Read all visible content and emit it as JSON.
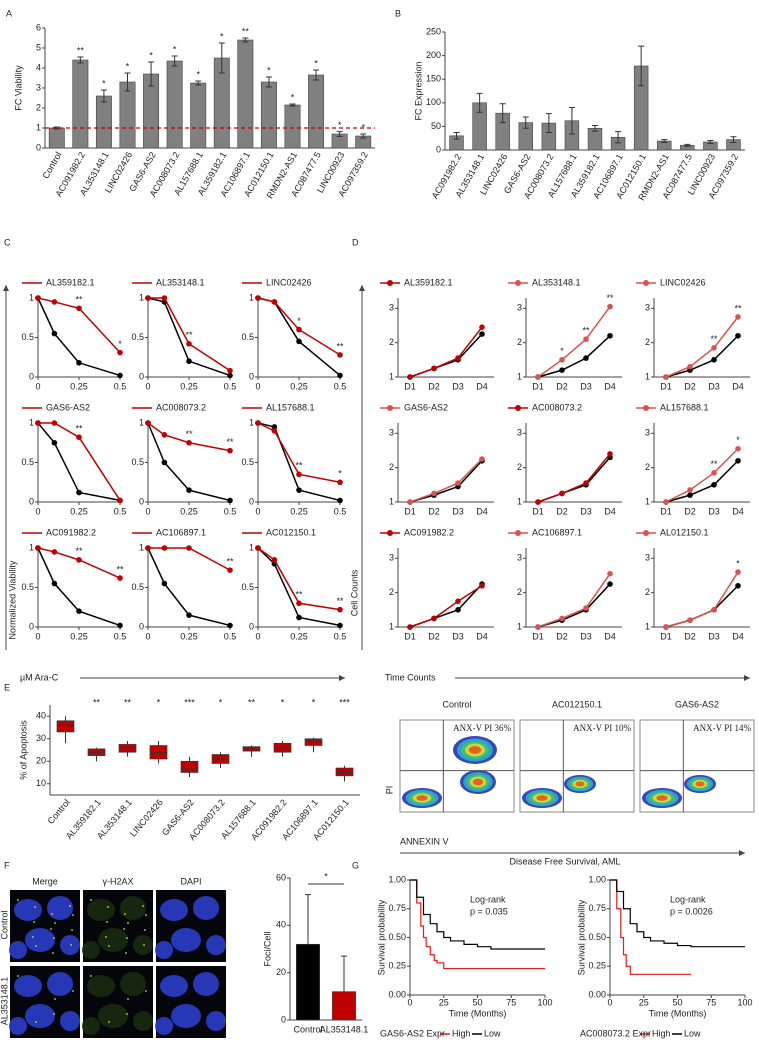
{
  "panel_letters": [
    "A",
    "B",
    "C",
    "D",
    "E",
    "F",
    "G"
  ],
  "chart_data": [
    {
      "type": "bar",
      "ylabel": "FC Viability",
      "categories": [
        "Control",
        "AC091982.2",
        "AL353148.1",
        "LINC02426",
        "GAS6-AS2",
        "AC008073.2",
        "AL157688.1",
        "AL359182.1",
        "AC106897.1",
        "AC012150.1",
        "RMDN2-AS1",
        "AC087477.5",
        "LINC00923",
        "AC097359.2"
      ],
      "values": [
        1,
        4.4,
        2.6,
        3.3,
        3.7,
        4.35,
        3.25,
        4.5,
        5.4,
        3.3,
        2.15,
        3.65,
        0.7,
        0.6
      ],
      "errors": [
        0.05,
        0.15,
        0.3,
        0.45,
        0.6,
        0.25,
        0.1,
        0.75,
        0.1,
        0.25,
        0.05,
        0.25,
        0.12,
        0.1
      ],
      "annotations": [
        null,
        "**",
        "*",
        "*",
        "*",
        "*",
        "*",
        "*",
        "**",
        "*",
        "*",
        "*",
        "*",
        "*"
      ],
      "color": "#808080",
      "ref_line": 1,
      "ref_color": "#c00000",
      "ylim": [
        0,
        6
      ],
      "yticks": [
        0,
        1,
        2,
        3,
        4,
        5,
        6
      ]
    },
    {
      "type": "bar",
      "ylabel": "FC Expression",
      "categories": [
        "AC091982.2",
        "AL353148.1",
        "LINC02426",
        "GAS6-AS2",
        "AC008073.2",
        "AL157688.1",
        "AL359182.1",
        "AC106897.1",
        "AC012150.1",
        "RMDN2-AS1",
        "AC087477.5",
        "LINC00923",
        "AC097359.2"
      ],
      "values": [
        30,
        100,
        78,
        58,
        57,
        62,
        46,
        27,
        178,
        19,
        10,
        17,
        22
      ],
      "errors": [
        7,
        20,
        20,
        12,
        20,
        28,
        6,
        12,
        42,
        3,
        2,
        3,
        6
      ],
      "color": "#808080",
      "ylim": [
        0,
        250
      ],
      "yticks": [
        0,
        50,
        100,
        150,
        200,
        250
      ]
    },
    {
      "type": "line",
      "ylabel": "Normalized Viability",
      "xlabel": "µM Ara-C",
      "x": [
        0,
        0.1,
        0.25,
        0.5
      ],
      "xlim": [
        0,
        0.5
      ],
      "xticks": [
        0,
        0.25,
        0.5
      ],
      "ylim": [
        0,
        1
      ],
      "yticks": [
        0,
        0.5,
        1
      ],
      "panels": [
        {
          "series": [
            {
              "color": "#000000",
              "values": [
                1,
                0.55,
                0.18,
                0.02
              ]
            },
            {
              "name": "AL359182.1",
              "color": "#c00000",
              "values": [
                1,
                0.95,
                0.87,
                0.31
              ],
              "annotations": [
                null,
                null,
                "**",
                "*"
              ]
            }
          ]
        },
        {
          "series": [
            {
              "color": "#000000",
              "values": [
                1,
                0.95,
                0.2,
                0.02
              ]
            },
            {
              "name": "AL353148.1",
              "color": "#c00000",
              "values": [
                1,
                1,
                0.42,
                0.08
              ],
              "annotations": [
                null,
                null,
                "**",
                null
              ]
            }
          ]
        },
        {
          "series": [
            {
              "color": "#000000",
              "values": [
                1,
                0.95,
                0.45,
                0.02
              ]
            },
            {
              "name": "LINC02426",
              "color": "#c00000",
              "values": [
                1,
                0.95,
                0.6,
                0.28
              ],
              "annotations": [
                null,
                null,
                "*",
                "**"
              ]
            }
          ]
        },
        {
          "series": [
            {
              "color": "#000000",
              "values": [
                1,
                0.75,
                0.12,
                0.02
              ]
            },
            {
              "name": "GAS6-AS2",
              "color": "#c00000",
              "values": [
                1,
                1,
                0.82,
                0.02
              ],
              "annotations": [
                null,
                null,
                "**",
                null
              ]
            }
          ]
        },
        {
          "series": [
            {
              "color": "#000000",
              "values": [
                1,
                0.5,
                0.15,
                0.02
              ]
            },
            {
              "name": "AC008073.2",
              "color": "#c00000",
              "values": [
                1,
                0.85,
                0.75,
                0.65
              ],
              "annotations": [
                null,
                null,
                "**",
                "**"
              ]
            }
          ]
        },
        {
          "series": [
            {
              "color": "#000000",
              "values": [
                1,
                0.95,
                0.15,
                0.02
              ]
            },
            {
              "name": "AL157688.1",
              "color": "#c00000",
              "values": [
                1,
                0.9,
                0.35,
                0.25
              ],
              "annotations": [
                null,
                null,
                "**",
                "*"
              ]
            }
          ]
        },
        {
          "series": [
            {
              "color": "#000000",
              "values": [
                1,
                0.55,
                0.2,
                0.02
              ]
            },
            {
              "name": "AC091982.2",
              "color": "#c00000",
              "values": [
                1,
                0.95,
                0.85,
                0.62
              ],
              "annotations": [
                null,
                null,
                "**",
                "**"
              ]
            }
          ]
        },
        {
          "series": [
            {
              "color": "#000000",
              "values": [
                1,
                0.55,
                0.15,
                0.02
              ]
            },
            {
              "name": "AC106897.1",
              "color": "#c00000",
              "values": [
                1,
                1,
                1,
                0.72
              ],
              "annotations": [
                null,
                null,
                null,
                "**"
              ]
            }
          ]
        },
        {
          "series": [
            {
              "color": "#000000",
              "values": [
                1,
                0.8,
                0.12,
                0.02
              ]
            },
            {
              "name": "AC012150.1",
              "color": "#c00000",
              "values": [
                1,
                0.85,
                0.3,
                0.22
              ],
              "annotations": [
                null,
                null,
                "**",
                "**"
              ]
            }
          ]
        }
      ]
    },
    {
      "type": "line",
      "ylabel": "Cell Counts",
      "xlabel": "Time Counts",
      "categories": [
        "D1",
        "D2",
        "D3",
        "D4"
      ],
      "ylim": [
        1,
        3.3
      ],
      "yticks": [
        1,
        2,
        3
      ],
      "panels": [
        {
          "series": [
            {
              "color": "#000000",
              "values": [
                1,
                1.25,
                1.5,
                2.25
              ]
            },
            {
              "name": "AL359182.1",
              "color": "#c00000",
              "values": [
                1,
                1.25,
                1.55,
                2.45
              ]
            }
          ]
        },
        {
          "series": [
            {
              "color": "#000000",
              "values": [
                1,
                1.2,
                1.55,
                2.2
              ]
            },
            {
              "name": "AL353148.1",
              "color": "#d9534f",
              "values": [
                1,
                1.5,
                2.1,
                3.05
              ],
              "annotations": [
                null,
                "*",
                "**",
                "**"
              ]
            }
          ]
        },
        {
          "series": [
            {
              "color": "#000000",
              "values": [
                1,
                1.2,
                1.5,
                2.2
              ]
            },
            {
              "name": "LINC02426",
              "color": "#d9534f",
              "values": [
                1,
                1.3,
                1.85,
                2.75
              ],
              "annotations": [
                null,
                null,
                "**",
                "**"
              ]
            }
          ]
        },
        {
          "series": [
            {
              "color": "#000000",
              "values": [
                1,
                1.2,
                1.45,
                2.2
              ]
            },
            {
              "name": "GAS6-AS2",
              "color": "#d9534f",
              "values": [
                1,
                1.25,
                1.55,
                2.25
              ]
            }
          ]
        },
        {
          "series": [
            {
              "color": "#000000",
              "values": [
                1,
                1.25,
                1.5,
                2.3
              ]
            },
            {
              "name": "AC008073.2",
              "color": "#c00000",
              "values": [
                1,
                1.25,
                1.55,
                2.4
              ]
            }
          ]
        },
        {
          "series": [
            {
              "color": "#000000",
              "values": [
                1,
                1.2,
                1.5,
                2.2
              ]
            },
            {
              "name": "AL157688.1",
              "color": "#d9534f",
              "values": [
                1,
                1.35,
                1.85,
                2.55
              ],
              "annotations": [
                null,
                null,
                "**",
                "*"
              ]
            }
          ]
        },
        {
          "series": [
            {
              "color": "#000000",
              "values": [
                1,
                1.25,
                1.5,
                2.25
              ]
            },
            {
              "name": "AC091982.2",
              "color": "#c00000",
              "values": [
                1,
                1.25,
                1.75,
                2.2
              ]
            }
          ]
        },
        {
          "series": [
            {
              "color": "#000000",
              "values": [
                1,
                1.2,
                1.5,
                2.25
              ]
            },
            {
              "name": "AC106897.1",
              "color": "#d9534f",
              "values": [
                1,
                1.25,
                1.55,
                2.55
              ]
            }
          ]
        },
        {
          "series": [
            {
              "color": "#000000",
              "values": [
                1,
                1.2,
                1.5,
                2.2
              ]
            },
            {
              "name": "AL012150.1",
              "color": "#d9534f",
              "values": [
                1,
                1.2,
                1.5,
                2.6
              ],
              "annotations": [
                null,
                null,
                null,
                "*"
              ]
            }
          ]
        }
      ]
    },
    {
      "type": "box",
      "ylabel": "% of Apoptosis",
      "categories": [
        "Control",
        "AL359182.1",
        "AL353148.1",
        "LINC02426",
        "GAS6-AS2",
        "AC008073.2",
        "AL157688.1",
        "AC091982.2",
        "AC106897.1",
        "AC012150.1"
      ],
      "boxes": [
        {
          "min": 28,
          "q1": 33,
          "median": 36,
          "q3": 38,
          "max": 40
        },
        {
          "min": 20,
          "q1": 22.5,
          "median": 24,
          "q3": 25.5,
          "max": 26
        },
        {
          "min": 22,
          "q1": 24,
          "median": 26,
          "q3": 27.5,
          "max": 29
        },
        {
          "min": 19,
          "q1": 21,
          "median": 24,
          "q3": 27,
          "max": 29
        },
        {
          "min": 13,
          "q1": 15,
          "median": 17,
          "q3": 20,
          "max": 22
        },
        {
          "min": 17,
          "q1": 19,
          "median": 21,
          "q3": 23,
          "max": 24
        },
        {
          "min": 22,
          "q1": 24.5,
          "median": 25.5,
          "q3": 26.5,
          "max": 27
        },
        {
          "min": 22,
          "q1": 24,
          "median": 26,
          "q3": 28,
          "max": 29
        },
        {
          "min": 24,
          "q1": 27,
          "median": 29,
          "q3": 30,
          "max": 30.5
        },
        {
          "min": 11,
          "q1": 13.5,
          "median": 15,
          "q3": 17,
          "max": 18
        }
      ],
      "annotations": [
        null,
        "**",
        "**",
        "*",
        "***",
        "*",
        "**",
        "*",
        "*",
        "***"
      ],
      "color": "#c00000",
      "ylim": [
        5,
        45
      ],
      "yticks": [
        10,
        20,
        30,
        40
      ]
    },
    {
      "type": "bar",
      "ylabel": "Foci/Cell",
      "categories": [
        "Control",
        "AL353148.1"
      ],
      "values": [
        32,
        12
      ],
      "errors": [
        21,
        15
      ],
      "colors": [
        "#000000",
        "#c00000"
      ],
      "significance": "*",
      "ylim": [
        0,
        60
      ],
      "yticks": [
        0,
        20,
        40,
        60
      ]
    },
    {
      "type": "step",
      "ylabel": "Survival probability",
      "xlabel": "Time (Months)",
      "annotation": [
        "Log-rank",
        "p = 0.035"
      ],
      "legend_title": "GAS6-AS2 Expr",
      "xlim": [
        0,
        100
      ],
      "xticks": [
        0,
        25,
        50,
        75,
        100
      ],
      "ylim": [
        0,
        1
      ],
      "yticks": [
        {
          "value": 0,
          "label": "0.00"
        },
        {
          "value": 0.25,
          "label": "0.25"
        },
        {
          "value": 0.5,
          "label": "0.50"
        },
        {
          "value": 0.75,
          "label": "0.75"
        },
        {
          "value": 1,
          "label": "1.00"
        }
      ],
      "series": [
        {
          "name": "High",
          "color": "#e41a1c",
          "x": [
            0,
            5,
            8,
            10,
            12,
            15,
            18,
            20,
            25,
            100
          ],
          "values": [
            1,
            0.8,
            0.6,
            0.5,
            0.42,
            0.35,
            0.3,
            0.28,
            0.23,
            0.23
          ]
        },
        {
          "name": "Low",
          "color": "#000000",
          "x": [
            0,
            5,
            10,
            15,
            20,
            25,
            30,
            40,
            50,
            60,
            75,
            100
          ],
          "values": [
            1,
            0.85,
            0.7,
            0.62,
            0.55,
            0.5,
            0.47,
            0.44,
            0.42,
            0.4,
            0.4,
            0.4
          ]
        }
      ]
    },
    {
      "type": "step",
      "ylabel": "Survival probability",
      "xlabel": "Time (Months)",
      "annotation": [
        "Log-rank",
        "p = 0.0026"
      ],
      "legend_title": "AC008073.2 Expr",
      "xlim": [
        0,
        100
      ],
      "xticks": [
        0,
        25,
        50,
        75,
        100
      ],
      "ylim": [
        0,
        1
      ],
      "yticks": [
        {
          "value": 0,
          "label": "0.00"
        },
        {
          "value": 0.25,
          "label": "0.25"
        },
        {
          "value": 0.5,
          "label": "0.50"
        },
        {
          "value": 0.75,
          "label": "0.75"
        },
        {
          "value": 1,
          "label": "1.00"
        }
      ],
      "series": [
        {
          "name": "High",
          "color": "#e41a1c",
          "x": [
            0,
            5,
            8,
            10,
            12,
            15,
            60
          ],
          "values": [
            1,
            0.75,
            0.5,
            0.35,
            0.25,
            0.18,
            0.18
          ]
        },
        {
          "name": "Low",
          "color": "#000000",
          "x": [
            0,
            5,
            10,
            15,
            20,
            25,
            30,
            40,
            50,
            60,
            70,
            100
          ],
          "values": [
            1,
            0.9,
            0.75,
            0.62,
            0.55,
            0.5,
            0.47,
            0.45,
            0.43,
            0.42,
            0.42,
            0.42
          ]
        }
      ]
    }
  ],
  "flow": {
    "titles": [
      "Control",
      "AC012150.1",
      "GAS6-AS2"
    ],
    "gate_labels": [
      "ANX-V PI 36%",
      "ANX-V PI 10%",
      "ANX-V PI 14%"
    ],
    "ylabel": "PI",
    "xlabel": "ANNEXIN V"
  },
  "microscopy": {
    "columns": [
      "Merge",
      "γ-H2AX",
      "DAPI"
    ],
    "rows": [
      "Control",
      "AL353148.1"
    ]
  },
  "survival_title": "Disease Free Survival, AML"
}
